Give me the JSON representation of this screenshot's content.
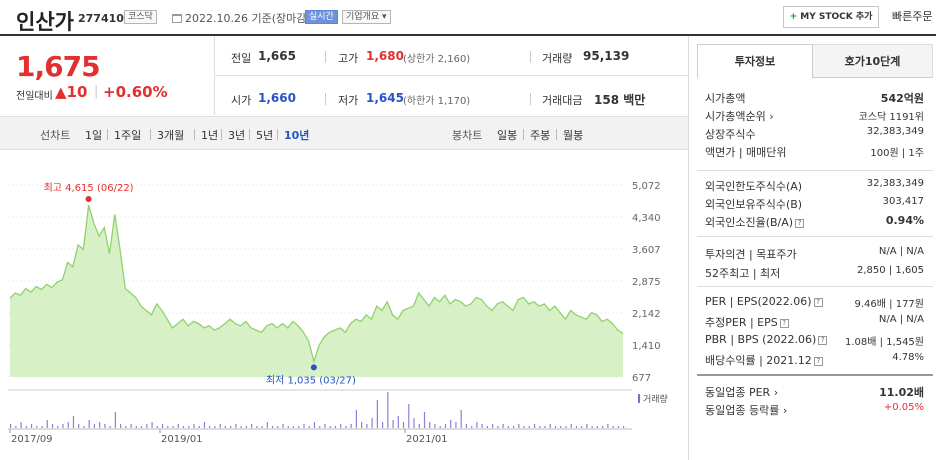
{
  "header": {
    "stock_name": "인산가",
    "stock_code": "277410",
    "market_badge": "코스닥",
    "date_text": "2022.10.26 기준(장마감)",
    "realtime_badge": "실시간",
    "overview_badge": "기업개요 ▾",
    "mystock_label": "MY STOCK 추가",
    "mystock_plus": "+",
    "quick_order_label": "빠른주문 ▾"
  },
  "quote": {
    "price": "1,675",
    "change_label": "전일대비",
    "change_amount": "▲10",
    "change_sep": "|",
    "change_pct": "+0.60%",
    "prev_close_label": "전일",
    "prev_close": "1,665",
    "high_label": "고가",
    "high": "1,680",
    "upper_limit": "(상한가 2,160)",
    "volume_label": "거래량",
    "volume": "95,139",
    "open_label": "시가",
    "open": "1,660",
    "low_label": "저가",
    "low": "1,645",
    "lower_limit": "(하한가 1,170)",
    "amount_label": "거래대금",
    "amount": "158 백만"
  },
  "period_bar": {
    "line_chart_label": "선차트",
    "periods": [
      "1일",
      "1주일",
      "3개월",
      "1년",
      "3년",
      "5년",
      "10년"
    ],
    "active_period": "10년",
    "candle_chart_label": "봉차트",
    "candle_periods": [
      "일봉",
      "주봉",
      "월봉"
    ]
  },
  "chart_data": {
    "type": "area",
    "series": [
      {
        "values": [
          2480,
          2600,
          2550,
          2700,
          2620,
          2750,
          2680,
          2800,
          2720,
          2850,
          2900,
          3300,
          3200,
          3700,
          3600,
          4615,
          4200,
          3900,
          4100,
          3500,
          4400,
          3600,
          2700,
          2600,
          2500,
          2300,
          2200,
          2100,
          2350,
          2200,
          2000,
          1800,
          1900,
          2000,
          1850,
          1950,
          1900,
          1800,
          1850,
          1750,
          1800,
          1900,
          2000,
          1900,
          1850,
          1950,
          1800,
          1750,
          1700,
          1850,
          1900,
          1800,
          1900,
          1800,
          1950,
          1850,
          1700,
          1500,
          1035,
          1400,
          1600,
          1700,
          1750,
          1800,
          1700,
          1900,
          2000,
          1950,
          2100,
          2000,
          2300,
          2200,
          2400,
          2100,
          2000,
          2200,
          2250,
          2300,
          2600,
          2450,
          2300,
          2500,
          2400,
          2550,
          2350,
          2450,
          2400,
          2300,
          2350,
          2500,
          2450,
          2300,
          2200,
          2350,
          2400,
          2300,
          2200,
          2450,
          2500,
          2350,
          2400,
          2300,
          2350,
          2200,
          2300,
          2150,
          2000,
          2200,
          2100,
          2050,
          2000,
          2150,
          2100,
          1950,
          2000,
          1900,
          1750,
          1675
        ]
      }
    ],
    "x_ticks": [
      "2017/09",
      "2019/01",
      "2021/01"
    ],
    "y_ticks": [
      "5,072",
      "4,340",
      "3,607",
      "2,875",
      "2,142",
      "1,410",
      "677"
    ],
    "ylim": [
      677,
      5072
    ],
    "high_label": "최고 4,615 (06/22)",
    "low_label": "최저 1,035 (03/27)",
    "volume_label": "거래량",
    "line_color": "#8fd36b",
    "fill_color": "#d7f0c6",
    "high_color": "#e32f2f",
    "low_color": "#2554c9",
    "volume": [
      2,
      1,
      3,
      1,
      2,
      1,
      1,
      4,
      2,
      1,
      2,
      3,
      6,
      2,
      1,
      4,
      2,
      3,
      2,
      1,
      8,
      2,
      1,
      2,
      1,
      1,
      2,
      3,
      1,
      2,
      1,
      1,
      2,
      1,
      1,
      2,
      1,
      3,
      1,
      1,
      2,
      1,
      1,
      2,
      1,
      1,
      2,
      1,
      1,
      3,
      1,
      1,
      2,
      1,
      1,
      1,
      2,
      1,
      3,
      1,
      2,
      1,
      1,
      2,
      1,
      2,
      9,
      3,
      2,
      5,
      14,
      3,
      18,
      4,
      6,
      3,
      12,
      5,
      2,
      8,
      3,
      2,
      1,
      2,
      4,
      3,
      9,
      2,
      1,
      3,
      2,
      1,
      2,
      1,
      2,
      1,
      1,
      2,
      1,
      1,
      2,
      1,
      1,
      2,
      1,
      1,
      1,
      2,
      1,
      1,
      2,
      1,
      1,
      1,
      2,
      1,
      1,
      1
    ]
  },
  "invest": {
    "tab_invest": "투자정보",
    "tab_hoga": "호가10단계",
    "rows": [
      {
        "label": "시가총액",
        "value": "542억원"
      },
      {
        "label": "시가총액순위 ›",
        "value": "코스닥 1191위"
      },
      {
        "label": "상장주식수",
        "value": "32,383,349"
      },
      {
        "label": "액면가 | 매매단위",
        "value": "100원 | 1주"
      },
      {
        "label": "외국인한도주식수(A)",
        "value": "32,383,349"
      },
      {
        "label": "외국인보유주식수(B)",
        "value": "303,417"
      },
      {
        "label": "외국인소진율(B/A)",
        "value": "0.94%"
      },
      {
        "label": "투자의견 | 목표주가",
        "value": "N/A | N/A"
      },
      {
        "label": "52주최고 | 최저",
        "value": "2,850 | 1,605"
      },
      {
        "label": "PER | EPS(2022.06)",
        "value": "9.46배 | 177원"
      },
      {
        "label": "추정PER | EPS",
        "value": "N/A | N/A"
      },
      {
        "label": "PBR | BPS (2022.06)",
        "value": "1.08배 | 1,545원"
      },
      {
        "label": "배당수익률 | 2021.12",
        "value": "4.78%"
      },
      {
        "label": "동일업종 PER ›",
        "value": "11.02배"
      },
      {
        "label": "동일업종 등락률 ›",
        "value": "+0.05%"
      }
    ],
    "q_icon": "?"
  }
}
